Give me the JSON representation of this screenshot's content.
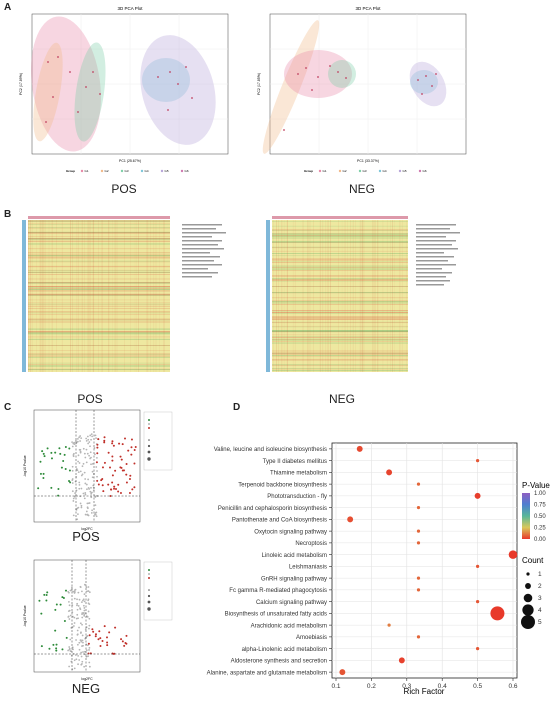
{
  "panels": {
    "a": {
      "letter": "A"
    },
    "b": {
      "letter": "B"
    },
    "c": {
      "letter": "C"
    },
    "d": {
      "letter": "D"
    }
  },
  "pca": {
    "pos": {
      "title": "3D PCA Plot",
      "xlabel": "PC1 (25.67%)",
      "ylabel": "PC2 (17.89%)",
      "legend_title": "Group",
      "legend_items": [
        "G1",
        "G2",
        "G3",
        "G4",
        "G5",
        "G6"
      ],
      "caption": "POS"
    },
    "neg": {
      "title": "3D PCA Plot",
      "xlabel": "PC1 (33.37%)",
      "ylabel": "PC2 (17.85%)",
      "legend_title": "Group",
      "legend_items": [
        "G1",
        "G2",
        "G3",
        "G4",
        "G5",
        "G6"
      ],
      "caption": "NEG"
    }
  },
  "heatmap": {
    "pos": {
      "caption": "POS"
    },
    "neg": {
      "caption": "NEG"
    }
  },
  "volcano": {
    "pos": {
      "caption": "POS",
      "xlabel": "log2FC",
      "ylabel": "-log10 Pvalue"
    },
    "neg": {
      "caption": "NEG",
      "xlabel": "log2FC",
      "ylabel": "-log10 Pvalue"
    }
  },
  "colors": {
    "pca_groups": [
      "#e88aa8",
      "#f2b98a",
      "#7fcfa8",
      "#7ec6d9",
      "#b8a6d9",
      "#d07ab0"
    ],
    "heat_low": "#3aa655",
    "heat_mid": "#f4f19a",
    "heat_high": "#d13b2a",
    "volcano_up": "#c0302a",
    "volcano_down": "#2e8b3a",
    "volcano_ns": "#b5b5b5"
  },
  "chart_data": {
    "type": "scatter",
    "xlabel": "Rich Factor",
    "ylabel": "",
    "xlim": [
      0.1,
      0.6
    ],
    "xticks": [
      0.1,
      0.2,
      0.3,
      0.4,
      0.5,
      0.6
    ],
    "pvalue_legend": {
      "title": "P-Value",
      "ticks": [
        1.0,
        0.75,
        0.5,
        0.25,
        0.0
      ],
      "tick_labels": [
        "1.00",
        "0.75",
        "0.50",
        "0.25",
        "0.00"
      ]
    },
    "count_legend": {
      "title": "Count",
      "values": [
        1,
        2,
        3,
        4,
        5
      ]
    },
    "points": [
      {
        "pathway": "Valine, leucine and isoleucine biosynthesis",
        "rich_factor": 0.167,
        "count": 2,
        "pvalue": 0.03
      },
      {
        "pathway": "Type II diabetes mellitus",
        "rich_factor": 0.5,
        "count": 1,
        "pvalue": 0.05
      },
      {
        "pathway": "Thiamine metabolism",
        "rich_factor": 0.25,
        "count": 2,
        "pvalue": 0.02
      },
      {
        "pathway": "Terpenoid backbone biosynthesis",
        "rich_factor": 0.333,
        "count": 1,
        "pvalue": 0.08
      },
      {
        "pathway": "Phototransduction - fly",
        "rich_factor": 0.5,
        "count": 2,
        "pvalue": 0.01
      },
      {
        "pathway": "Penicillin and cephalosporin biosynthesis",
        "rich_factor": 0.333,
        "count": 1,
        "pvalue": 0.08
      },
      {
        "pathway": "Pantothenate and CoA biosynthesis",
        "rich_factor": 0.14,
        "count": 2,
        "pvalue": 0.04
      },
      {
        "pathway": "Oxytocin signaling pathway",
        "rich_factor": 0.333,
        "count": 1,
        "pvalue": 0.08
      },
      {
        "pathway": "Necroptosis",
        "rich_factor": 0.333,
        "count": 1,
        "pvalue": 0.08
      },
      {
        "pathway": "Linoleic acid metabolism",
        "rich_factor": 0.6,
        "count": 3,
        "pvalue": 0.003
      },
      {
        "pathway": "Leishmaniasis",
        "rich_factor": 0.5,
        "count": 1,
        "pvalue": 0.05
      },
      {
        "pathway": "GnRH signaling pathway",
        "rich_factor": 0.333,
        "count": 1,
        "pvalue": 0.08
      },
      {
        "pathway": "Fc gamma R-mediated phagocytosis",
        "rich_factor": 0.333,
        "count": 1,
        "pvalue": 0.08
      },
      {
        "pathway": "Calcium signaling pathway",
        "rich_factor": 0.5,
        "count": 1,
        "pvalue": 0.05
      },
      {
        "pathway": "Biosynthesis of unsaturated fatty acids",
        "rich_factor": 0.556,
        "count": 5,
        "pvalue": 0.001
      },
      {
        "pathway": "Arachidonic acid metabolism",
        "rich_factor": 0.25,
        "count": 1,
        "pvalue": 0.12
      },
      {
        "pathway": "Amoebiasis",
        "rich_factor": 0.333,
        "count": 1,
        "pvalue": 0.08
      },
      {
        "pathway": "alpha-Linolenic acid metabolism",
        "rich_factor": 0.5,
        "count": 1,
        "pvalue": 0.05
      },
      {
        "pathway": "Aldosterone synthesis and secretion",
        "rich_factor": 0.286,
        "count": 2,
        "pvalue": 0.015
      },
      {
        "pathway": "Alanine, aspartate and glutamate metabolism",
        "rich_factor": 0.118,
        "count": 2,
        "pvalue": 0.05
      }
    ]
  }
}
